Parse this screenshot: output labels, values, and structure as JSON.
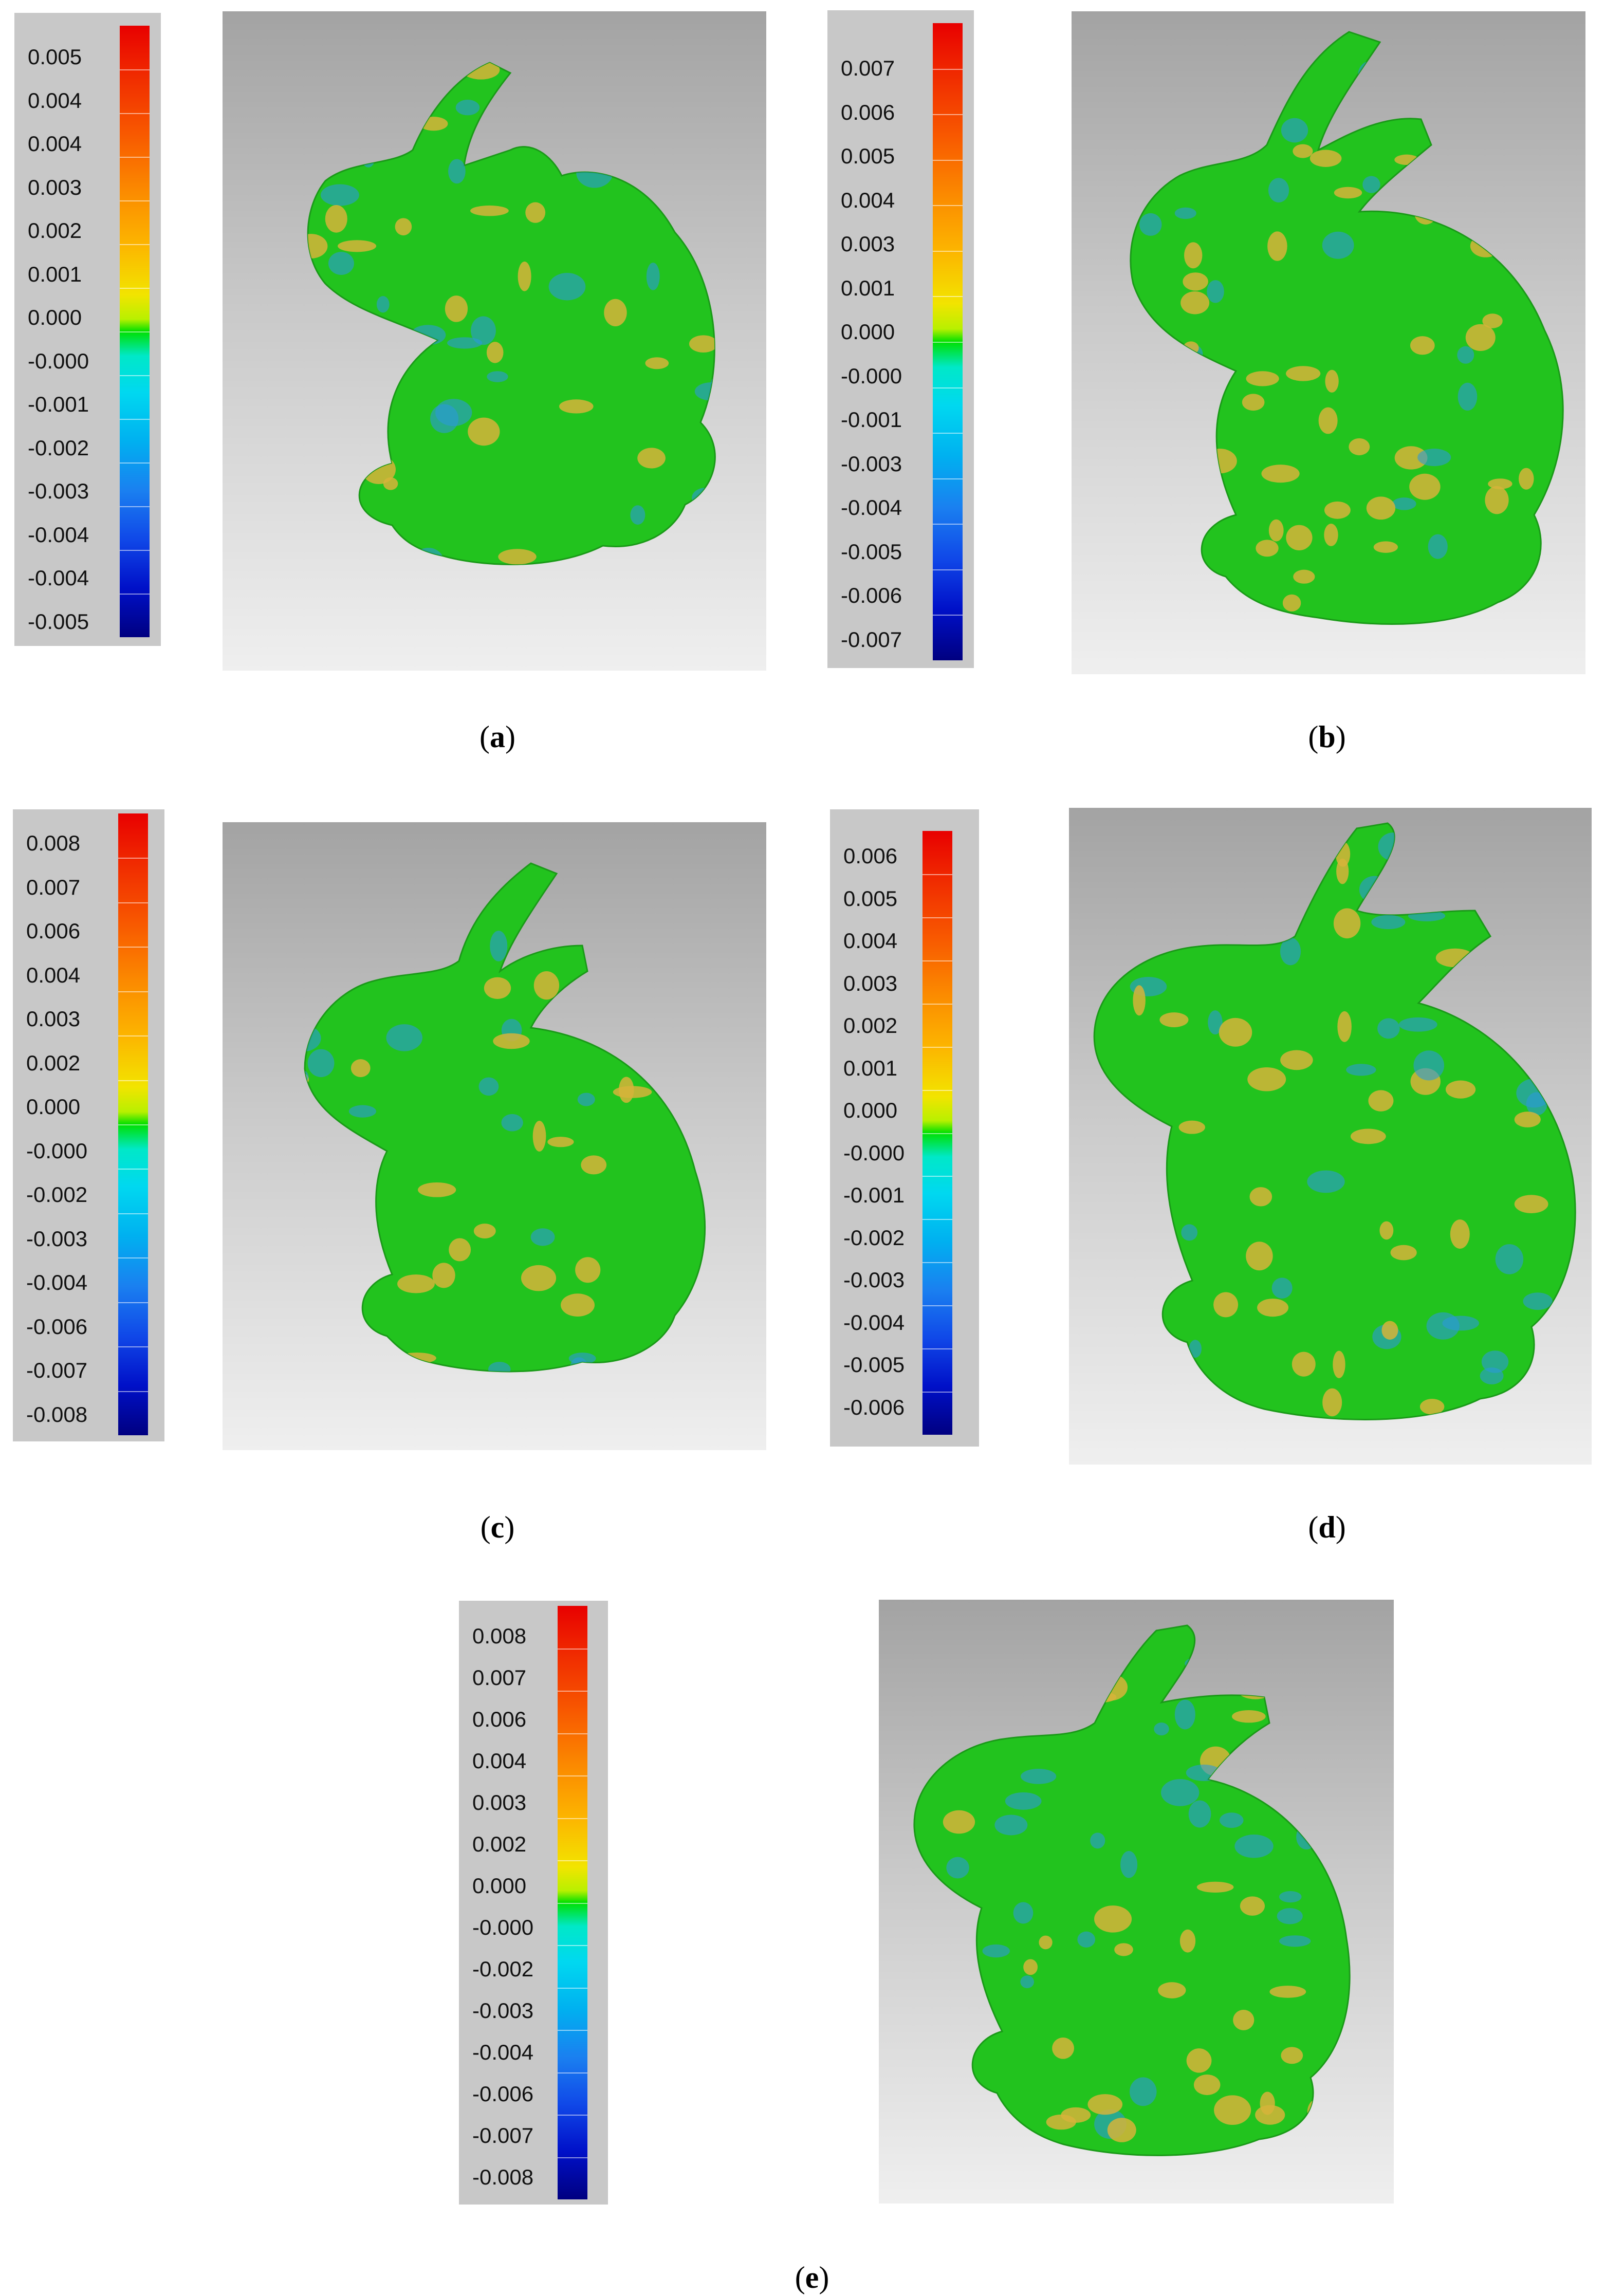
{
  "panels": [
    {
      "label": "a",
      "ticks": [
        "0.005",
        "0.004",
        "0.004",
        "0.003",
        "0.002",
        "0.001",
        "0.000",
        "-0.000",
        "-0.001",
        "-0.002",
        "-0.003",
        "-0.004",
        "-0.004",
        "-0.005"
      ]
    },
    {
      "label": "b",
      "ticks": [
        "0.007",
        "0.006",
        "0.005",
        "0.004",
        "0.003",
        "0.001",
        "0.000",
        "-0.000",
        "-0.001",
        "-0.003",
        "-0.004",
        "-0.005",
        "-0.006",
        "-0.007"
      ]
    },
    {
      "label": "c",
      "ticks": [
        "0.008",
        "0.007",
        "0.006",
        "0.004",
        "0.003",
        "0.002",
        "0.000",
        "-0.000",
        "-0.002",
        "-0.003",
        "-0.004",
        "-0.006",
        "-0.007",
        "-0.008"
      ]
    },
    {
      "label": "d",
      "ticks": [
        "0.006",
        "0.005",
        "0.004",
        "0.003",
        "0.002",
        "0.001",
        "0.000",
        "-0.000",
        "-0.001",
        "-0.002",
        "-0.003",
        "-0.004",
        "-0.005",
        "-0.006"
      ]
    },
    {
      "label": "e",
      "ticks": [
        "0.008",
        "0.007",
        "0.006",
        "0.004",
        "0.003",
        "0.002",
        "0.000",
        "-0.000",
        "-0.002",
        "-0.003",
        "-0.004",
        "-0.006",
        "-0.007",
        "-0.008"
      ]
    }
  ],
  "colors": {
    "mesh_green": "#22c31e",
    "hot_spot": "#d6b43a",
    "cold_spot": "#2c9ad8",
    "background_top": "#a3a3a3",
    "background_bottom": "#efefef"
  }
}
